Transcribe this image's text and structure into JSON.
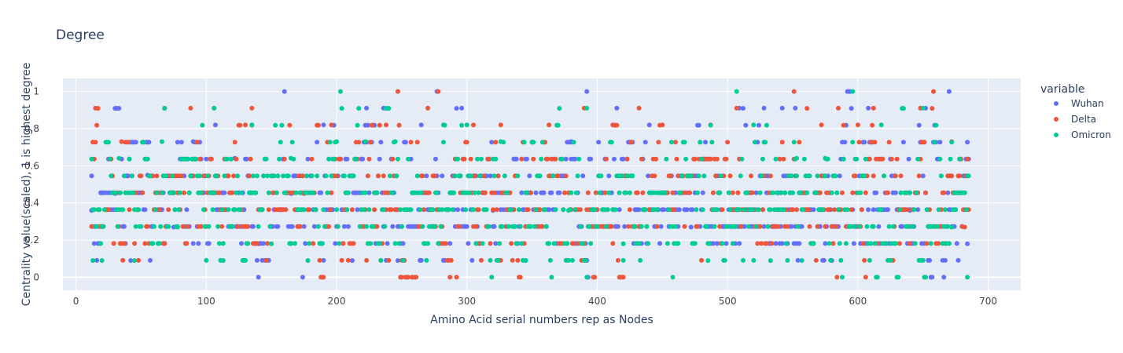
{
  "chart_data": {
    "type": "scatter",
    "title": "Degree",
    "xlabel": "Amino Acid serial numbers rep as Nodes",
    "ylabel": "Centrality value(scaled), 1 is highest degree",
    "xlim": [
      -10,
      725
    ],
    "ylim": [
      -0.07,
      1.07
    ],
    "xticks": [
      0,
      100,
      200,
      300,
      400,
      500,
      600,
      700
    ],
    "yticks": [
      0,
      0.2,
      0.4,
      0.6,
      0.8,
      1
    ],
    "ytick_labels": [
      "0",
      "0.2",
      "0.4",
      "0.6",
      "0.8",
      "1"
    ],
    "grid": true,
    "plot_bg": "#e5ecf6",
    "legend": {
      "title": "variable",
      "placement": "right",
      "entries": [
        {
          "name": "Wuhan",
          "color": "#636efa"
        },
        {
          "name": "Delta",
          "color": "#ef553b"
        },
        {
          "name": "Omicron",
          "color": "#00cc96"
        }
      ]
    },
    "x_range_nodes": [
      12,
      685
    ],
    "y_levels": [
      0,
      0.0909,
      0.1818,
      0.2727,
      0.3636,
      0.4545,
      0.5455,
      0.6364,
      0.7273,
      0.8182,
      0.9091,
      1
    ],
    "series": [
      {
        "name": "Wuhan",
        "color": "#636efa",
        "sample_points": [
          [
            12,
            0.36
          ],
          [
            30,
            0.45
          ],
          [
            42,
            0.09
          ],
          [
            55,
            0.55
          ],
          [
            75,
            0.27
          ],
          [
            90,
            0.73
          ],
          [
            107,
            0.82
          ],
          [
            122,
            0.64
          ],
          [
            140,
            0.18
          ],
          [
            165,
            0.45
          ],
          [
            190,
            0.82
          ],
          [
            212,
            0.09
          ],
          [
            223,
            0.91
          ],
          [
            236,
            0.91
          ],
          [
            247,
            0.09
          ],
          [
            265,
            0.82
          ],
          [
            277,
            1.0
          ],
          [
            296,
            0.91
          ],
          [
            320,
            0.36
          ],
          [
            345,
            0.09
          ],
          [
            380,
            0.73
          ],
          [
            392,
            1.0
          ],
          [
            415,
            0.91
          ],
          [
            440,
            0.82
          ],
          [
            472,
            0.27
          ],
          [
            509,
            0.91
          ],
          [
            528,
            0.91
          ],
          [
            542,
            0.91
          ],
          [
            552,
            0.91
          ],
          [
            580,
            0.09
          ],
          [
            608,
            0.91
          ],
          [
            640,
            0.36
          ],
          [
            652,
            0.91
          ],
          [
            670,
            1.0
          ],
          [
            684,
            0.18
          ]
        ]
      },
      {
        "name": "Delta",
        "color": "#ef553b",
        "sample_points": [
          [
            15,
            0.91
          ],
          [
            35,
            0.73
          ],
          [
            68,
            0.91
          ],
          [
            88,
            0.91
          ],
          [
            106,
            0.91
          ],
          [
            130,
            0.82
          ],
          [
            135,
            0.91
          ],
          [
            175,
            0.45
          ],
          [
            196,
            0.82
          ],
          [
            238,
            0.82
          ],
          [
            247,
            1.0
          ],
          [
            250,
            0.0
          ],
          [
            270,
            0.91
          ],
          [
            278,
            1.0
          ],
          [
            305,
            0.82
          ],
          [
            326,
            0.82
          ],
          [
            363,
            0.82
          ],
          [
            390,
            0.91
          ],
          [
            412,
            0.82
          ],
          [
            432,
            0.91
          ],
          [
            450,
            0.82
          ],
          [
            487,
            0.82
          ],
          [
            507,
            0.91
          ],
          [
            551,
            1.0
          ],
          [
            572,
            0.82
          ],
          [
            585,
            0.91
          ],
          [
            600,
            0.82
          ],
          [
            606,
            0.0
          ],
          [
            612,
            0.91
          ],
          [
            648,
            0.91
          ],
          [
            672,
            0.73
          ],
          [
            682,
            0.27
          ]
        ]
      },
      {
        "name": "Omicron",
        "color": "#00cc96",
        "sample_points": [
          [
            13,
            0.09
          ],
          [
            20,
            0.09
          ],
          [
            33,
            0.64
          ],
          [
            45,
            0.09
          ],
          [
            66,
            0.73
          ],
          [
            78,
            0.27
          ],
          [
            106,
            0.91
          ],
          [
            113,
            0.09
          ],
          [
            135,
            0.82
          ],
          [
            150,
            0.18
          ],
          [
            165,
            0.64
          ],
          [
            178,
            0.09
          ],
          [
            200,
            0.73
          ],
          [
            222,
            0.73
          ],
          [
            245,
            0.73
          ],
          [
            282,
            0.82
          ],
          [
            300,
            0.82
          ],
          [
            326,
            0.73
          ],
          [
            345,
            0.09
          ],
          [
            378,
            0.36
          ],
          [
            392,
            0.91
          ],
          [
            420,
            0.18
          ],
          [
            458,
            0.0
          ],
          [
            485,
            0.09
          ],
          [
            507,
            1.0
          ],
          [
            520,
            0.82
          ],
          [
            533,
            0.09
          ],
          [
            553,
            0.64
          ],
          [
            557,
            0.09
          ],
          [
            575,
            0.64
          ],
          [
            596,
            1.0
          ],
          [
            618,
            0.82
          ],
          [
            650,
            0.91
          ],
          [
            672,
            0.27
          ],
          [
            684,
            0.0
          ]
        ]
      }
    ]
  }
}
